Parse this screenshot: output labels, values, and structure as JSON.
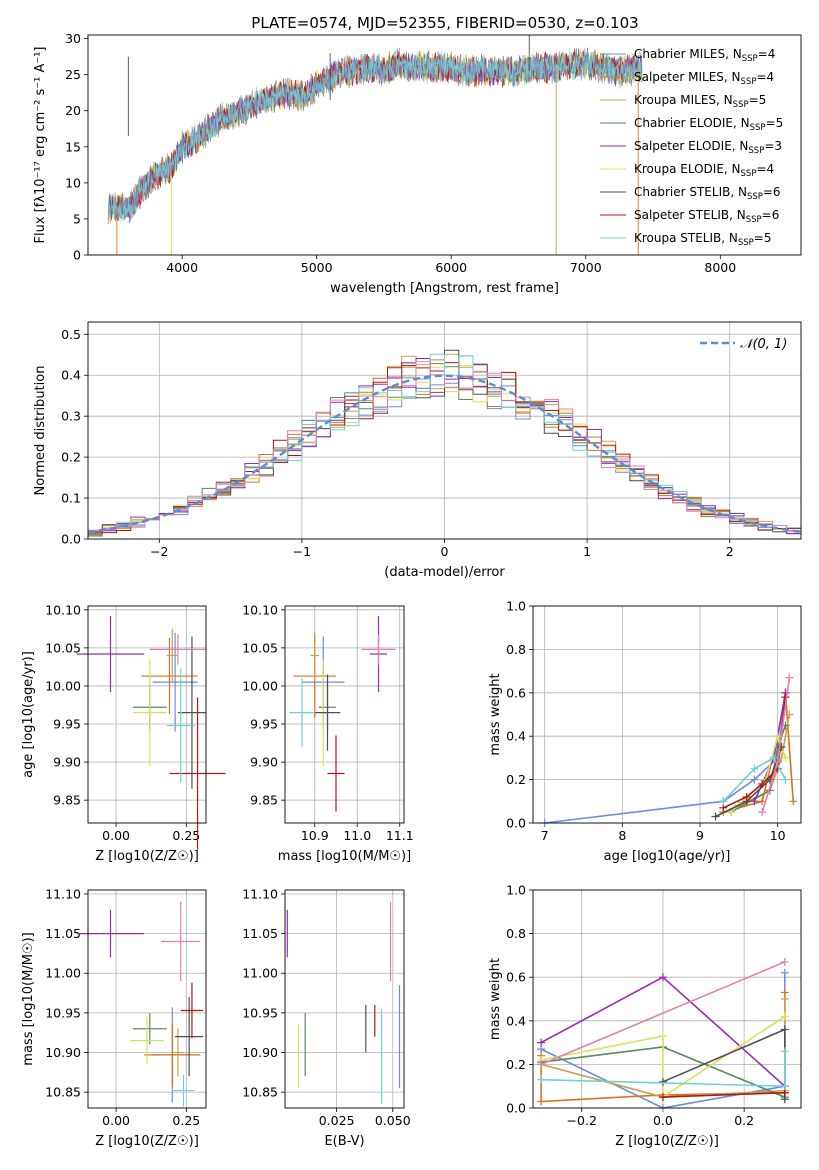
{
  "title": "PLATE=0574, MJD=52355, FIBERID=0530, z=0.103",
  "colors": {
    "chabrier_miles": "#6b8ce0",
    "salpeter_miles": "#e0701f",
    "kroupa_miles": "#c8a050",
    "chabrier_elodie": "#5a8a5a",
    "salpeter_elodie": "#9a2ab0",
    "kroupa_elodie": "#d8e060",
    "chabrier_stelib": "#505050",
    "salpeter_stelib": "#b01818",
    "kroupa_stelib": "#70d0d8",
    "pink": "#e080b0",
    "gauss": "#5b8dd6",
    "grid": "#b0b0b0"
  },
  "chart_data": [
    {
      "type": "line",
      "title": "PLATE=0574, MJD=52355, FIBERID=0530, z=0.103",
      "xlabel": "wavelength [Angstrom, rest frame]",
      "ylabel": "Flux [fλ10⁻¹⁷ erg cm⁻² s⁻¹ A⁻¹]",
      "xlim": [
        3300,
        8600
      ],
      "ylim": [
        0,
        30.5
      ],
      "xticks": [
        4000,
        5000,
        6000,
        7000,
        8000
      ],
      "yticks": [
        0,
        5,
        10,
        15,
        20,
        25,
        30
      ],
      "grid": false,
      "legend_position": "right",
      "legend": [
        {
          "label": "Chabrier MILES, N_SSP=4",
          "text": "Chabrier MILES, N",
          "sub": "SSP",
          "tail": "=4",
          "color": "#6b8ce0"
        },
        {
          "label": "Salpeter MILES, N_SSP=4",
          "text": "Salpeter MILES, N",
          "sub": "SSP",
          "tail": "=4",
          "color": "#e0701f"
        },
        {
          "label": "Kroupa MILES, N_SSP=5",
          "text": "Kroupa MILES, N",
          "sub": "SSP",
          "tail": "=5",
          "color": "#c8a050"
        },
        {
          "label": "Chabrier ELODIE, N_SSP=5",
          "text": "Chabrier ELODIE, N",
          "sub": "SSP",
          "tail": "=5",
          "color": "#5a8a5a"
        },
        {
          "label": "Salpeter ELODIE, N_SSP=3",
          "text": "Salpeter ELODIE, N",
          "sub": "SSP",
          "tail": "=3",
          "color": "#9a2ab0"
        },
        {
          "label": "Kroupa ELODIE, N_SSP=4",
          "text": "Kroupa ELODIE, N",
          "sub": "SSP",
          "tail": "=4",
          "color": "#d8e060"
        },
        {
          "label": "Chabrier STELIB, N_SSP=6",
          "text": "Chabrier STELIB, N",
          "sub": "SSP",
          "tail": "=6",
          "color": "#505050"
        },
        {
          "label": "Salpeter STELIB, N_SSP=6",
          "text": "Salpeter STELIB, N",
          "sub": "SSP",
          "tail": "=6",
          "color": "#b01818"
        },
        {
          "label": "Kroupa STELIB, N_SSP=5",
          "text": "Kroupa STELIB, N",
          "sub": "SSP",
          "tail": "=5",
          "color": "#70d0d8"
        }
      ],
      "spectrum_envelope": {
        "x": [
          3450,
          3600,
          3700,
          3800,
          3900,
          3950,
          4000,
          4100,
          4200,
          4300,
          4400,
          4500,
          4600,
          4700,
          4800,
          4900,
          5000,
          5100,
          5200,
          5300,
          5400,
          5500,
          5600,
          5700,
          5800,
          5900,
          6000,
          6100,
          6200,
          6300,
          6400,
          6500,
          6600,
          6700,
          6800,
          6900,
          7000,
          7100,
          7200,
          7300,
          7400
        ],
        "y": [
          6.5,
          6.5,
          9,
          11,
          12,
          13,
          15,
          16,
          17.5,
          19,
          19.5,
          20.5,
          21.5,
          22,
          22.5,
          22,
          23.5,
          24.5,
          25.5,
          25.5,
          26,
          25.5,
          26.5,
          26,
          26,
          26,
          26,
          25.5,
          25.5,
          25.5,
          25.5,
          25.5,
          26,
          26,
          26,
          26.5,
          26.5,
          26,
          25.5,
          25.5,
          26
        ]
      },
      "vertical_spikes": [
        {
          "x": 3600,
          "y0": 16.5,
          "y1": 27.5,
          "color": "#505050"
        },
        {
          "x": 3515,
          "y0": 0,
          "y1": 6.5,
          "color": "#e0701f"
        },
        {
          "x": 3920,
          "y0": 0,
          "y1": 11,
          "color": "#d8e060"
        },
        {
          "x": 5100,
          "y0": 21.5,
          "y1": 28,
          "color": "#505050"
        },
        {
          "x": 6780,
          "y0": 0,
          "y1": 26,
          "color": "#c8a050"
        },
        {
          "x": 7390,
          "y0": 0,
          "y1": 26,
          "color": "#e0701f"
        },
        {
          "x": 6580,
          "y0": 25.5,
          "y1": 30.5,
          "color": "#505050"
        }
      ]
    },
    {
      "type": "bar",
      "xlabel": "(data-model)/error",
      "ylabel": "Normed distribution",
      "xlim": [
        -2.5,
        2.5
      ],
      "ylim": [
        0,
        0.53
      ],
      "xticks": [
        -2,
        -1,
        0,
        1,
        2
      ],
      "yticks": [
        0.0,
        0.1,
        0.2,
        0.3,
        0.4,
        0.5
      ],
      "grid": true,
      "legend_position": "top-right",
      "legend": [
        {
          "label": "𝒩(0, 1)",
          "color": "#5b8dd6",
          "style": "dashed"
        }
      ],
      "bin_width": 0.1,
      "bins_start": -2.5,
      "reference_curve": "standard normal pdf"
    },
    {
      "type": "scatter",
      "xlabel": "Z [log10(Z/Z☉)]",
      "ylabel": "age  [log10(age/yr)]",
      "xlim": [
        -0.1,
        0.32
      ],
      "ylim": [
        9.82,
        10.105
      ],
      "xticks": [
        0.0,
        0.25
      ],
      "yticks": [
        9.85,
        9.9,
        9.95,
        10.0,
        10.05,
        10.1
      ],
      "grid": true,
      "points": [
        {
          "x": 0.21,
          "y": 10.005,
          "xerr": 0.08,
          "yerr": 0.065,
          "color": "#6b8ce0"
        },
        {
          "x": 0.19,
          "y": 10.013,
          "xerr": 0.1,
          "yerr": 0.05,
          "color": "#e0701f"
        },
        {
          "x": 0.2,
          "y": 10.04,
          "xerr": 0.02,
          "yerr": 0.035,
          "color": "#c8a050"
        },
        {
          "x": 0.12,
          "y": 9.972,
          "xerr": 0.06,
          "yerr": 0.03,
          "color": "#5a8a5a"
        },
        {
          "x": -0.02,
          "y": 10.042,
          "xerr": 0.12,
          "yerr": 0.05,
          "color": "#9a2ab0"
        },
        {
          "x": 0.12,
          "y": 9.965,
          "xerr": 0.06,
          "yerr": 0.07,
          "color": "#d8e060"
        },
        {
          "x": 0.27,
          "y": 9.965,
          "xerr": 0.05,
          "yerr": 0.1,
          "color": "#505050"
        },
        {
          "x": 0.29,
          "y": 9.885,
          "xerr": 0.1,
          "yerr": 0.1,
          "color": "#b01818"
        },
        {
          "x": 0.23,
          "y": 9.948,
          "xerr": 0.05,
          "yerr": 0.075,
          "color": "#70d0d8"
        },
        {
          "x": 0.22,
          "y": 10.048,
          "xerr": 0.1,
          "yerr": 0.02,
          "color": "#e080b0"
        }
      ]
    },
    {
      "type": "scatter",
      "xlabel": "mass [log10(M/M☉)]",
      "ylabel": "",
      "xlim": [
        10.83,
        11.11
      ],
      "ylim": [
        9.82,
        10.105
      ],
      "xticks": [
        10.9,
        11.0,
        11.1
      ],
      "yticks": [
        9.85,
        9.9,
        9.95,
        10.0,
        10.05,
        10.1
      ],
      "grid": true,
      "points": [
        {
          "x": 10.92,
          "y": 10.005,
          "xerr": 0.05,
          "yerr": 0.06,
          "color": "#6b8ce0"
        },
        {
          "x": 10.9,
          "y": 10.013,
          "xerr": 0.05,
          "yerr": 0.055,
          "color": "#e0701f"
        },
        {
          "x": 10.9,
          "y": 10.04,
          "xerr": 0.01,
          "yerr": 0.03,
          "color": "#c8a050"
        },
        {
          "x": 10.93,
          "y": 9.972,
          "xerr": 0.02,
          "yerr": 0.03,
          "color": "#5a8a5a"
        },
        {
          "x": 11.05,
          "y": 10.042,
          "xerr": 0.02,
          "yerr": 0.05,
          "color": "#9a2ab0"
        },
        {
          "x": 10.92,
          "y": 9.965,
          "xerr": 0.01,
          "yerr": 0.07,
          "color": "#d8e060"
        },
        {
          "x": 10.93,
          "y": 9.965,
          "xerr": 0.03,
          "yerr": 0.05,
          "color": "#505050"
        },
        {
          "x": 10.95,
          "y": 9.885,
          "xerr": 0.02,
          "yerr": 0.05,
          "color": "#b01818"
        },
        {
          "x": 10.87,
          "y": 9.965,
          "xerr": 0.03,
          "yerr": 0.045,
          "color": "#70d0d8"
        },
        {
          "x": 11.05,
          "y": 10.048,
          "xerr": 0.04,
          "yerr": 0.02,
          "color": "#e080b0"
        }
      ]
    },
    {
      "type": "line",
      "xlabel": "age  [log10(age/yr)]",
      "ylabel": "mass weight",
      "xlim": [
        6.85,
        10.3
      ],
      "ylim": [
        0,
        1.0
      ],
      "xticks": [
        7,
        8,
        9,
        10
      ],
      "yticks": [
        0.0,
        0.2,
        0.4,
        0.6,
        0.8,
        1.0
      ],
      "grid": true,
      "series": [
        {
          "color": "#6b8ce0",
          "x": [
            7.0,
            9.3,
            9.7,
            10.0,
            10.1
          ],
          "y": [
            0.0,
            0.1,
            0.2,
            0.3,
            0.6
          ]
        },
        {
          "color": "#e0701f",
          "x": [
            9.3,
            9.8,
            10.0,
            10.1,
            10.2
          ],
          "y": [
            0.05,
            0.1,
            0.4,
            0.6,
            0.1
          ]
        },
        {
          "color": "#c8a050",
          "x": [
            9.5,
            9.9,
            10.05,
            10.15
          ],
          "y": [
            0.08,
            0.15,
            0.3,
            0.5
          ]
        },
        {
          "color": "#5a8a5a",
          "x": [
            9.4,
            9.9,
            10.0,
            10.1
          ],
          "y": [
            0.05,
            0.15,
            0.35,
            0.45
          ]
        },
        {
          "color": "#9a2ab0",
          "x": [
            9.7,
            9.95,
            10.1
          ],
          "y": [
            0.1,
            0.3,
            0.6
          ]
        },
        {
          "color": "#d8e060",
          "x": [
            9.4,
            9.85,
            10.0,
            10.1
          ],
          "y": [
            0.05,
            0.2,
            0.4,
            0.3
          ]
        },
        {
          "color": "#505050",
          "x": [
            9.2,
            9.6,
            9.9,
            10.05
          ],
          "y": [
            0.03,
            0.1,
            0.2,
            0.35
          ]
        },
        {
          "color": "#b01818",
          "x": [
            9.3,
            9.6,
            9.8,
            10.0,
            10.1
          ],
          "y": [
            0.07,
            0.12,
            0.18,
            0.25,
            0.58
          ]
        },
        {
          "color": "#70d0d8",
          "x": [
            9.3,
            9.7,
            9.95,
            10.1
          ],
          "y": [
            0.1,
            0.25,
            0.3,
            0.2
          ]
        },
        {
          "color": "#e080b0",
          "x": [
            9.8,
            10.0,
            10.15
          ],
          "y": [
            0.05,
            0.28,
            0.67
          ]
        }
      ]
    },
    {
      "type": "scatter",
      "xlabel": "Z [log10(Z/Z☉)]",
      "ylabel": "mass [log10(M/M☉)]",
      "xlim": [
        -0.1,
        0.32
      ],
      "ylim": [
        10.83,
        11.105
      ],
      "xticks": [
        0.0,
        0.25
      ],
      "yticks": [
        10.85,
        10.9,
        10.95,
        11.0,
        11.05,
        11.1
      ],
      "grid": true,
      "points": [
        {
          "x": 0.2,
          "y": 10.897,
          "xerr": 0.07,
          "yerr": 0.06,
          "color": "#6b8ce0"
        },
        {
          "x": 0.2,
          "y": 10.897,
          "xerr": 0.1,
          "yerr": 0.04,
          "color": "#e0701f"
        },
        {
          "x": 0.22,
          "y": 10.9,
          "xerr": 0.02,
          "yerr": 0.03,
          "color": "#c8a050"
        },
        {
          "x": 0.12,
          "y": 10.93,
          "xerr": 0.06,
          "yerr": 0.02,
          "color": "#5a8a5a"
        },
        {
          "x": -0.02,
          "y": 11.05,
          "xerr": 0.12,
          "yerr": 0.03,
          "color": "#9a2ab0"
        },
        {
          "x": 0.11,
          "y": 10.915,
          "xerr": 0.06,
          "yerr": 0.03,
          "color": "#d8e060"
        },
        {
          "x": 0.26,
          "y": 10.92,
          "xerr": 0.05,
          "yerr": 0.05,
          "color": "#505050"
        },
        {
          "x": 0.27,
          "y": 10.953,
          "xerr": 0.04,
          "yerr": 0.035,
          "color": "#b01818"
        },
        {
          "x": 0.24,
          "y": 10.852,
          "xerr": 0.04,
          "yerr": 0.02,
          "color": "#70d0d8"
        },
        {
          "x": 0.23,
          "y": 11.04,
          "xerr": 0.07,
          "yerr": 0.05,
          "color": "#e080b0"
        }
      ]
    },
    {
      "type": "scatter",
      "xlabel": "E(B-V)",
      "ylabel": "",
      "xlim": [
        0.002,
        0.055
      ],
      "ylim": [
        10.83,
        11.105
      ],
      "xticks": [
        0.025,
        0.05
      ],
      "yticks": [
        10.85,
        10.9,
        10.95,
        11.0,
        11.05,
        11.1
      ],
      "grid": true,
      "points": [
        {
          "x": 0.053,
          "y": 10.92,
          "xerr": 0.0,
          "yerr": 0.065,
          "color": "#6b8ce0"
        },
        {
          "x": 0.045,
          "y": 10.895,
          "xerr": 0.0,
          "yerr": 0.06,
          "color": "#70d0d8"
        },
        {
          "x": 0.003,
          "y": 11.05,
          "xerr": 0.0,
          "yerr": 0.03,
          "color": "#9a2ab0"
        },
        {
          "x": 0.008,
          "y": 10.895,
          "xerr": 0.0,
          "yerr": 0.04,
          "color": "#d8e060"
        },
        {
          "x": 0.011,
          "y": 10.91,
          "xerr": 0.0,
          "yerr": 0.04,
          "color": "#5a8a5a"
        },
        {
          "x": 0.038,
          "y": 10.93,
          "xerr": 0.0,
          "yerr": 0.03,
          "color": "#505050"
        },
        {
          "x": 0.042,
          "y": 10.94,
          "xerr": 0.0,
          "yerr": 0.02,
          "color": "#b01818"
        },
        {
          "x": 0.049,
          "y": 11.04,
          "xerr": 0.0,
          "yerr": 0.05,
          "color": "#e080b0"
        }
      ]
    },
    {
      "type": "line",
      "xlabel": "Z [log10(Z/Z☉)]",
      "ylabel": "mass weight",
      "xlim": [
        -0.32,
        0.34
      ],
      "ylim": [
        0,
        1.0
      ],
      "xticks": [
        -0.2,
        0.0,
        0.2
      ],
      "yticks": [
        0.0,
        0.2,
        0.4,
        0.6,
        0.8,
        1.0
      ],
      "grid": true,
      "series": [
        {
          "color": "#6b8ce0",
          "x": [
            -0.3,
            0.0,
            0.3,
            0.3
          ],
          "y": [
            0.27,
            0.0,
            0.1,
            0.62
          ]
        },
        {
          "color": "#e0701f",
          "x": [
            -0.3,
            -0.3,
            0.0,
            0.3,
            0.3
          ],
          "y": [
            0.24,
            0.03,
            0.06,
            0.07,
            0.53
          ]
        },
        {
          "color": "#c8a050",
          "x": [
            -0.3,
            0.0,
            0.3,
            0.3
          ],
          "y": [
            0.2,
            0.05,
            0.08,
            0.5
          ]
        },
        {
          "color": "#5a8a5a",
          "x": [
            -0.3,
            0.0,
            0.3
          ],
          "y": [
            0.21,
            0.28,
            0.05
          ]
        },
        {
          "color": "#9a2ab0",
          "x": [
            -0.3,
            0.0,
            0.3
          ],
          "y": [
            0.3,
            0.6,
            0.1
          ]
        },
        {
          "color": "#d8e060",
          "x": [
            -0.3,
            0.0,
            0.0,
            0.3
          ],
          "y": [
            0.22,
            0.33,
            0.05,
            0.42
          ]
        },
        {
          "color": "#505050",
          "x": [
            0.0,
            0.3,
            0.3
          ],
          "y": [
            0.12,
            0.36,
            0.04
          ]
        },
        {
          "color": "#b01818",
          "x": [
            0.0,
            0.3
          ],
          "y": [
            0.05,
            0.07
          ]
        },
        {
          "color": "#70d0d8",
          "x": [
            -0.3,
            0.3,
            0.3
          ],
          "y": [
            0.13,
            0.1,
            0.26
          ]
        },
        {
          "color": "#e080b0",
          "x": [
            -0.3,
            0.3
          ],
          "y": [
            0.2,
            0.67
          ]
        }
      ]
    }
  ]
}
